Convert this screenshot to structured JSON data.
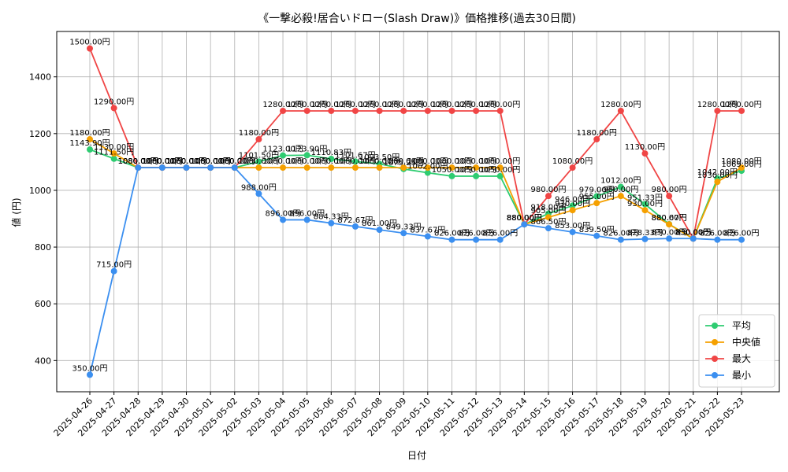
{
  "chart_data": {
    "type": "line",
    "title": "《一撃必殺!居合いドロー(Slash Draw)》価格推移(過去30日間)",
    "xlabel": "日付",
    "ylabel": "値 (円)",
    "ylim": [
      290,
      1560
    ],
    "yticks": [
      400,
      600,
      800,
      1000,
      1200,
      1400
    ],
    "grid": true,
    "legend_position": "bottom-right",
    "categories": [
      "2025-04-26",
      "2025-04-27",
      "2025-04-28",
      "2025-04-29",
      "2025-04-30",
      "2025-05-01",
      "2025-05-02",
      "2025-05-03",
      "2025-05-04",
      "2025-05-05",
      "2025-05-06",
      "2025-05-07",
      "2025-05-08",
      "2025-05-09",
      "2025-05-10",
      "2025-05-11",
      "2025-05-12",
      "2025-05-13",
      "2025-05-14",
      "2025-05-15",
      "2025-05-16",
      "2025-05-17",
      "2025-05-18",
      "2025-05-19",
      "2025-05-20",
      "2025-05-21",
      "2025-05-22",
      "2025-05-23"
    ],
    "series": [
      {
        "name": "平均",
        "color": "#2ecc71",
        "values": [
          1143.9,
          1111.5,
          1080,
          1080,
          1080,
          1080,
          1080,
          1101.5,
          1123.0,
          1123.9,
          1110.83,
          1101.67,
          1093.5,
          1075.25,
          1062.0,
          1050.0,
          1050.0,
          1050.0,
          880.0,
          918.0,
          946.0,
          979.0,
          1012.0,
          951.33,
          880.67,
          830.0,
          1042.0,
          1069.0
        ]
      },
      {
        "name": "中央値",
        "color": "#f5a000",
        "values": [
          1180.0,
          1130.0,
          1080,
          1080,
          1080,
          1080,
          1080,
          1080.0,
          1080.0,
          1080.0,
          1080.0,
          1080.0,
          1080.0,
          1080.0,
          1080.0,
          1080.0,
          1080.0,
          1080.0,
          880.0,
          905.0,
          930.0,
          955.0,
          980.0,
          930.0,
          880.0,
          830.0,
          1030.0,
          1080.0
        ]
      },
      {
        "name": "最大",
        "color": "#f04545",
        "values": [
          1500.0,
          1290.0,
          1080,
          1080,
          1080,
          1080,
          1080,
          1180.0,
          1280.0,
          1280.0,
          1280.0,
          1280.0,
          1280.0,
          1280.0,
          1280.0,
          1280.0,
          1280.0,
          1280.0,
          880.0,
          980.0,
          1080.0,
          1180.0,
          1280.0,
          1130.0,
          980.0,
          830.0,
          1280.0,
          1280.0
        ]
      },
      {
        "name": "最小",
        "color": "#3b8ff0",
        "values": [
          350.0,
          715.0,
          1080,
          1080,
          1080,
          1080,
          1080,
          988.0,
          896.0,
          896.0,
          884.33,
          872.67,
          861.0,
          849.33,
          837.67,
          826.0,
          826.0,
          826.0,
          880.0,
          866.5,
          853.0,
          839.5,
          826.0,
          828.33,
          830.0,
          830.0,
          826.0,
          826.0
        ]
      }
    ],
    "data_label_suffix": "円"
  }
}
